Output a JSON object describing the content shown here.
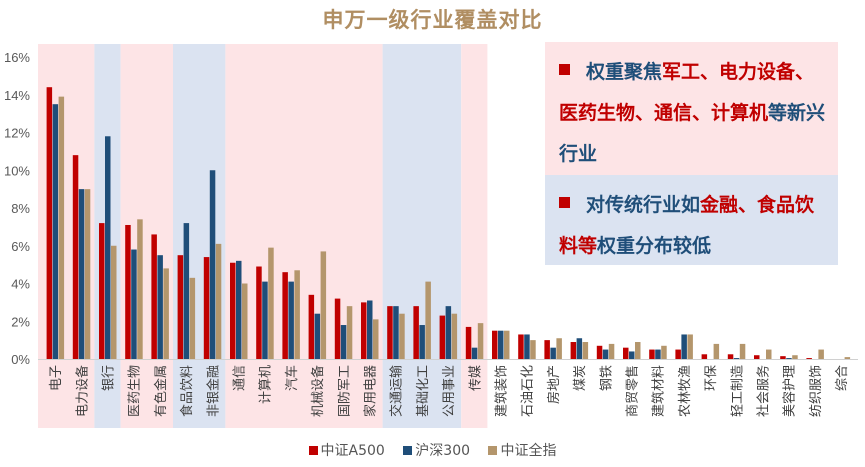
{
  "chart_data": {
    "type": "bar",
    "title": "申万一级行业覆盖对比",
    "xlabel": "",
    "ylabel": "",
    "ylim": [
      0,
      16
    ],
    "yticks": [
      "0%",
      "2%",
      "4%",
      "6%",
      "8%",
      "10%",
      "12%",
      "14%",
      "16%"
    ],
    "grid": false,
    "legend_position": "bottom",
    "categories": [
      "电子",
      "电力设备",
      "银行",
      "医药生物",
      "有色金属",
      "食品饮料",
      "非银金融",
      "通信",
      "计算机",
      "汽车",
      "机械设备",
      "国防军工",
      "家用电器",
      "交通运输",
      "基础化工",
      "公用事业",
      "传媒",
      "建筑装饰",
      "石油石化",
      "房地产",
      "煤炭",
      "钢铁",
      "商贸零售",
      "建筑材料",
      "农林牧渔",
      "环保",
      "轻工制造",
      "社会服务",
      "美容护理",
      "纺织服饰",
      "综合"
    ],
    "series": [
      {
        "name": "中证A500",
        "color": "#c00000",
        "values": [
          14.4,
          10.8,
          7.2,
          7.1,
          6.6,
          5.5,
          5.4,
          5.1,
          4.9,
          4.6,
          3.4,
          3.2,
          3.0,
          2.8,
          2.8,
          2.3,
          1.7,
          1.5,
          1.3,
          1.0,
          0.9,
          0.7,
          0.6,
          0.5,
          0.5,
          0.25,
          0.25,
          0.2,
          0.15,
          0.05,
          0.0
        ]
      },
      {
        "name": "沪深300",
        "color": "#1f4e79",
        "values": [
          13.5,
          9.0,
          11.8,
          5.8,
          5.5,
          7.2,
          10.0,
          5.2,
          4.1,
          4.1,
          2.4,
          1.8,
          3.1,
          2.8,
          1.8,
          2.8,
          0.6,
          1.5,
          1.3,
          0.6,
          1.1,
          0.5,
          0.4,
          0.5,
          1.3,
          0.0,
          0.05,
          0.0,
          0.05,
          0.0,
          0.0
        ]
      },
      {
        "name": "中证全指",
        "color": "#b4966c",
        "values": [
          13.9,
          9.0,
          6.0,
          7.4,
          4.8,
          4.3,
          6.1,
          4.0,
          5.9,
          4.7,
          5.7,
          2.8,
          2.1,
          2.4,
          4.1,
          2.4,
          1.9,
          1.5,
          1.0,
          1.1,
          0.9,
          0.8,
          0.9,
          0.7,
          1.3,
          0.8,
          0.8,
          0.5,
          0.2,
          0.5,
          0.1
        ]
      }
    ],
    "highlight_bands": [
      {
        "from": 0,
        "to": 1,
        "color": "#fde4e6"
      },
      {
        "from": 2,
        "to": 2,
        "color": "#dbe3f1"
      },
      {
        "from": 3,
        "to": 4,
        "color": "#fde4e6"
      },
      {
        "from": 5,
        "to": 6,
        "color": "#dbe3f1"
      },
      {
        "from": 7,
        "to": 12,
        "color": "#fde4e6"
      },
      {
        "from": 13,
        "to": 15,
        "color": "#dbe3f1"
      },
      {
        "from": 16,
        "to": 16,
        "color": "#fde4e6"
      }
    ]
  },
  "callout": {
    "point1": {
      "a": "权重聚焦",
      "b": "军工、电力设备、医药生物、通信、计算机",
      "c": "等新兴行业"
    },
    "point2": {
      "a": "对传统行业如",
      "b": "金融、食品饮料等",
      "c": "权重分布较低"
    }
  }
}
